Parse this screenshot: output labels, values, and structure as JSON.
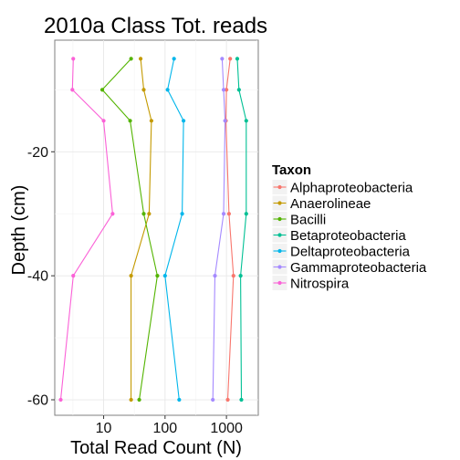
{
  "chart_data": {
    "type": "line",
    "title": "2010a Class Tot. reads",
    "xlabel": "Total Read Count (N)",
    "ylabel": "Depth (cm)",
    "x_scale": "log10",
    "xlim": [
      1.6,
      3300
    ],
    "ylim": [
      -62.5,
      -2
    ],
    "x_ticks": [
      10,
      100,
      1000
    ],
    "x_tick_labels": [
      "10",
      "100",
      "1000"
    ],
    "y_ticks": [
      -20,
      -40,
      -60
    ],
    "y_tick_labels": [
      "-20",
      "-40",
      "-60"
    ],
    "grid": true,
    "legend": {
      "title": "Taxon",
      "position": "right"
    },
    "depths": [
      -5,
      -10,
      -15,
      -30,
      -40,
      -60
    ],
    "series": [
      {
        "name": "Alphaproteobacteria",
        "color": "#F8766D",
        "values": [
          1150,
          1000,
          980,
          1100,
          1300,
          1050
        ]
      },
      {
        "name": "Anaerolineae",
        "color": "#C49A00",
        "values": [
          40,
          45,
          60,
          55,
          28,
          28
        ]
      },
      {
        "name": "Bacilli",
        "color": "#53B400",
        "values": [
          28,
          9.5,
          27,
          45,
          75,
          38
        ]
      },
      {
        "name": "Betaproteobacteria",
        "color": "#00C094",
        "values": [
          1500,
          1600,
          2100,
          2100,
          1700,
          1750
        ]
      },
      {
        "name": "Deltaproteobacteria",
        "color": "#00B6EB",
        "values": [
          140,
          110,
          200,
          190,
          100,
          170
        ]
      },
      {
        "name": "Gammaproteobacteria",
        "color": "#A58AFF",
        "values": [
          850,
          900,
          950,
          900,
          650,
          600
        ]
      },
      {
        "name": "Nitrospira",
        "color": "#FB61D7",
        "values": [
          3.2,
          3.1,
          10,
          14,
          3.2,
          2
        ]
      }
    ]
  }
}
